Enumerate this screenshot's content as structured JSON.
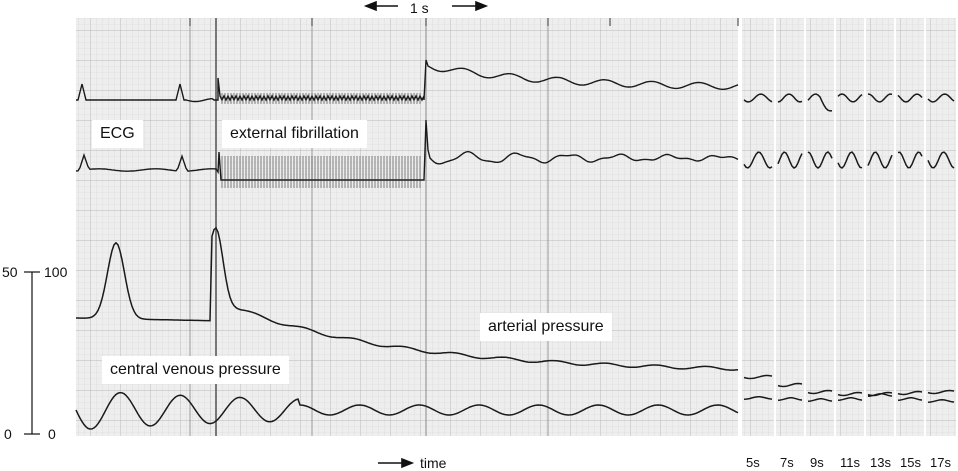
{
  "labels": {
    "ecg": "ECG",
    "fibrillation": "external fibrillation",
    "arterial": "arterial pressure",
    "venous": "central venous pressure"
  },
  "scale_bar": {
    "label": "1 s"
  },
  "time_axis": {
    "label": "time"
  },
  "pressure_scale": {
    "left_top": "50",
    "left_bottom": "0",
    "right_top": "100",
    "right_bottom": "0"
  },
  "snapshots": [
    "5s",
    "7s",
    "9s",
    "11s",
    "13s",
    "15s",
    "17s"
  ],
  "colors": {
    "grid_minor": "#d6d6d6",
    "grid_major": "#b4b4b4",
    "paper": "#ececec",
    "trace": "#1a1a1a"
  }
}
